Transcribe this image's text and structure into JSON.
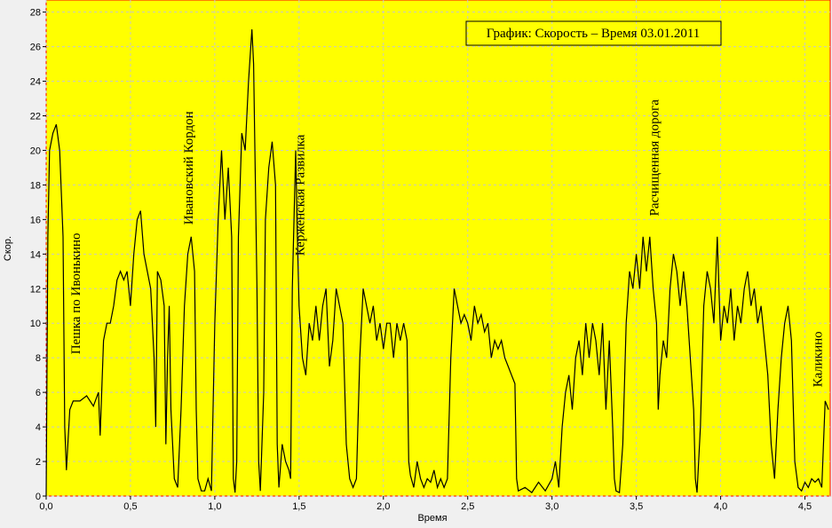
{
  "chart_data": {
    "type": "line",
    "title": "График: Скорость – Время 03.01.2011",
    "x_label": "Время",
    "y_label": "Скор.",
    "xlim": [
      0,
      4.65
    ],
    "ylim": [
      0,
      28.7
    ],
    "xticks": [
      {
        "value": 0,
        "label": "0,0"
      },
      {
        "value": 0.5,
        "label": "0,5"
      },
      {
        "value": 1,
        "label": "1,0"
      },
      {
        "value": 1.5,
        "label": "1,5"
      },
      {
        "value": 2,
        "label": "2,0"
      },
      {
        "value": 2.5,
        "label": "2,5"
      },
      {
        "value": 3,
        "label": "3,0"
      },
      {
        "value": 3.5,
        "label": "3,5"
      },
      {
        "value": 4,
        "label": "4,0"
      },
      {
        "value": 4.5,
        "label": "4,5"
      }
    ],
    "yticks": [
      0,
      2,
      4,
      6,
      8,
      10,
      12,
      14,
      16,
      18,
      20,
      22,
      24,
      26,
      28
    ],
    "grid": true,
    "background": "#ffff00",
    "color": "#000000",
    "annotations": [
      {
        "text": "Пешка по Ивонькино",
        "x": 0.2,
        "y": 8.2
      },
      {
        "text": "Ивановский Кордон",
        "x": 0.87,
        "y": 15.7
      },
      {
        "text": "Керженская Развилка",
        "x": 1.53,
        "y": 13.9
      },
      {
        "text": "Расчищенная дорога",
        "x": 3.63,
        "y": 16.2
      },
      {
        "text": "Каликино",
        "x": 4.6,
        "y": 6.3
      }
    ],
    "x": [
      0,
      0.01,
      0.02,
      0.04,
      0.06,
      0.08,
      0.1,
      0.11,
      0.12,
      0.14,
      0.16,
      0.2,
      0.24,
      0.28,
      0.31,
      0.32,
      0.34,
      0.36,
      0.38,
      0.4,
      0.42,
      0.44,
      0.46,
      0.48,
      0.5,
      0.52,
      0.54,
      0.56,
      0.58,
      0.6,
      0.62,
      0.64,
      0.65,
      0.66,
      0.68,
      0.7,
      0.71,
      0.72,
      0.73,
      0.74,
      0.76,
      0.78,
      0.8,
      0.82,
      0.84,
      0.86,
      0.88,
      0.89,
      0.9,
      0.92,
      0.94,
      0.96,
      0.98,
      1,
      1.02,
      1.04,
      1.06,
      1.08,
      1.1,
      1.11,
      1.12,
      1.13,
      1.14,
      1.16,
      1.18,
      1.2,
      1.22,
      1.23,
      1.25,
      1.26,
      1.27,
      1.29,
      1.3,
      1.32,
      1.34,
      1.36,
      1.37,
      1.38,
      1.4,
      1.42,
      1.44,
      1.45,
      1.46,
      1.48,
      1.49,
      1.5,
      1.52,
      1.54,
      1.56,
      1.58,
      1.6,
      1.62,
      1.64,
      1.66,
      1.68,
      1.7,
      1.72,
      1.74,
      1.76,
      1.78,
      1.8,
      1.82,
      1.84,
      1.86,
      1.88,
      1.9,
      1.92,
      1.94,
      1.96,
      1.98,
      2,
      2.02,
      2.04,
      2.06,
      2.08,
      2.1,
      2.12,
      2.14,
      2.15,
      2.16,
      2.18,
      2.2,
      2.22,
      2.24,
      2.26,
      2.28,
      2.3,
      2.32,
      2.34,
      2.36,
      2.38,
      2.4,
      2.42,
      2.44,
      2.46,
      2.48,
      2.5,
      2.52,
      2.54,
      2.56,
      2.58,
      2.6,
      2.62,
      2.64,
      2.66,
      2.68,
      2.7,
      2.72,
      2.74,
      2.76,
      2.78,
      2.79,
      2.8,
      2.84,
      2.88,
      2.92,
      2.96,
      3,
      3.02,
      3.04,
      3.06,
      3.08,
      3.1,
      3.12,
      3.14,
      3.16,
      3.18,
      3.2,
      3.22,
      3.24,
      3.26,
      3.28,
      3.3,
      3.32,
      3.34,
      3.36,
      3.37,
      3.38,
      3.4,
      3.42,
      3.44,
      3.46,
      3.48,
      3.5,
      3.52,
      3.54,
      3.56,
      3.58,
      3.6,
      3.62,
      3.63,
      3.64,
      3.66,
      3.68,
      3.7,
      3.72,
      3.74,
      3.76,
      3.78,
      3.8,
      3.82,
      3.84,
      3.85,
      3.86,
      3.88,
      3.9,
      3.92,
      3.94,
      3.96,
      3.98,
      4,
      4.02,
      4.04,
      4.06,
      4.08,
      4.1,
      4.12,
      4.14,
      4.16,
      4.18,
      4.2,
      4.22,
      4.24,
      4.26,
      4.28,
      4.3,
      4.32,
      4.34,
      4.36,
      4.38,
      4.4,
      4.42,
      4.44,
      4.46,
      4.48,
      4.5,
      4.52,
      4.54,
      4.56,
      4.58,
      4.6,
      4.62,
      4.64
    ],
    "values": [
      0,
      15,
      20,
      21,
      21.5,
      20,
      15,
      4,
      1.5,
      5,
      5.5,
      5.5,
      5.8,
      5.2,
      6,
      3.5,
      9,
      10,
      10,
      11,
      12.5,
      13,
      12.5,
      13,
      11,
      14,
      16,
      16.5,
      14,
      13,
      12,
      8,
      4,
      13,
      12.5,
      11,
      3,
      8,
      11,
      5,
      1,
      0.5,
      5,
      11,
      14,
      15,
      13,
      5,
      1,
      0.3,
      0.3,
      1,
      0.3,
      10,
      16,
      20,
      16,
      19,
      15,
      1,
      0.2,
      2,
      15,
      21,
      20,
      24,
      27,
      25,
      12,
      2,
      0.3,
      6,
      16,
      19,
      20.5,
      18,
      3,
      0.5,
      3,
      2,
      1.5,
      1,
      12,
      20,
      15,
      11,
      8,
      7,
      10,
      9,
      11,
      9,
      11,
      12,
      7.5,
      9,
      12,
      11,
      10,
      3,
      1,
      0.5,
      1,
      8,
      12,
      11,
      10,
      11,
      9,
      10,
      8.5,
      10,
      10,
      8,
      10,
      9,
      10,
      9,
      2,
      1.2,
      0.5,
      2,
      1,
      0.5,
      1,
      0.8,
      1.5,
      0.5,
      1,
      0.5,
      1,
      8,
      12,
      11,
      10,
      10.5,
      10,
      9,
      11,
      10,
      10.5,
      9.5,
      10,
      8,
      9,
      8.5,
      9,
      8,
      7.5,
      7,
      6.5,
      1,
      0.3,
      0.5,
      0.2,
      0.8,
      0.3,
      1,
      2,
      0.5,
      4,
      6,
      7,
      5,
      8,
      9,
      7,
      10,
      8,
      10,
      9,
      7,
      10,
      5,
      9,
      4,
      1,
      0.3,
      0.2,
      3,
      10,
      13,
      12,
      14,
      12,
      15,
      13,
      15,
      12,
      10,
      5,
      7,
      9,
      8,
      12,
      14,
      13,
      11,
      13,
      11,
      8,
      5,
      1,
      0.2,
      4,
      11,
      13,
      12,
      10,
      15,
      9,
      11,
      10,
      12,
      9,
      11,
      10,
      12,
      13,
      11,
      12,
      10,
      11,
      9,
      7,
      3,
      1,
      5,
      8,
      10,
      11,
      9,
      2,
      0.5,
      0.3,
      0.8,
      0.5,
      1,
      0.8,
      1,
      0.5,
      5.5,
      5
    ]
  }
}
